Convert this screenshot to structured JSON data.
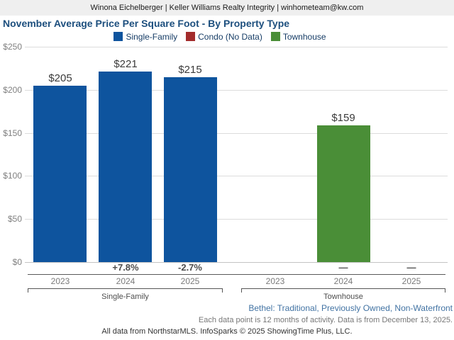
{
  "header": {
    "contact": "Winona Eichelberger | Keller Williams Realty Integrity | winhometeam@kw.com"
  },
  "title": "November Average Price Per Square Foot - By Property Type",
  "chart_data": {
    "type": "bar",
    "title": "November Average Price Per Square Foot - By Property Type",
    "ylabel": "",
    "xlabel": "",
    "ylim": [
      0,
      250
    ],
    "yticks": [
      0,
      50,
      100,
      150,
      200,
      250
    ],
    "ytick_labels": [
      "$0",
      "$50",
      "$100",
      "$150",
      "$200",
      "$250"
    ],
    "grid": true,
    "legend_position": "top",
    "legend": [
      {
        "label": "Single-Family",
        "color": "#0e549e"
      },
      {
        "label": "Condo (No Data)",
        "color": "#a32c2c"
      },
      {
        "label": "Townhouse",
        "color": "#4a8e37"
      }
    ],
    "groups": [
      {
        "name": "Single-Family",
        "color": "#0e549e",
        "categories": [
          "2023",
          "2024",
          "2025"
        ],
        "values": [
          205,
          221,
          215
        ],
        "value_labels": [
          "$205",
          "$221",
          "$215"
        ],
        "change_labels": [
          "",
          "+7.8%",
          "-2.7%"
        ]
      },
      {
        "name": "Townhouse",
        "color": "#4a8e37",
        "categories": [
          "2023",
          "2024",
          "2025"
        ],
        "values": [
          null,
          159,
          null
        ],
        "value_labels": [
          "",
          "$159",
          ""
        ],
        "change_labels": [
          "",
          "—",
          "—"
        ]
      }
    ]
  },
  "footer": {
    "criteria": "Bethel: Traditional, Previously Owned, Non-Waterfront",
    "data_note": "Each data point is 12 months of activity. Data is from December 13, 2025.",
    "attribution": "All data from NorthstarMLS. InfoSparks © 2025 ShowingTime Plus, LLC."
  }
}
